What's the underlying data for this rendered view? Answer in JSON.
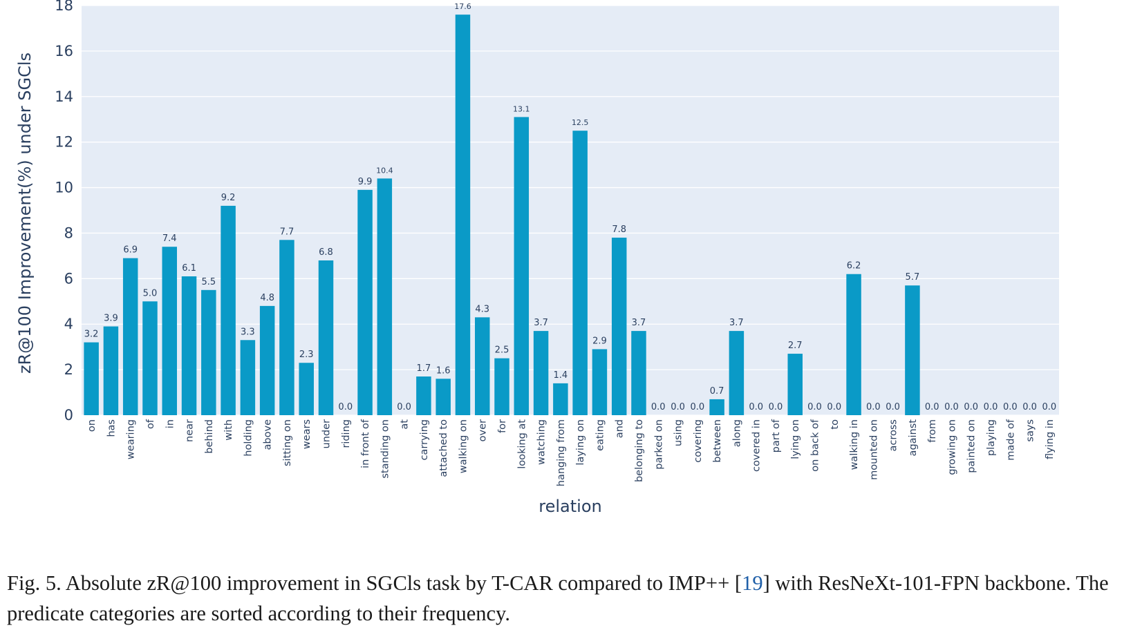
{
  "colors": {
    "bar": "#0a9ac7",
    "plot_bg": "#e5ecf6",
    "grid": "#ffffff",
    "text": "#2a3f5f",
    "ref_link": "#1f5fa8"
  },
  "chart_data": {
    "type": "bar",
    "xlabel": "relation",
    "ylabel": "zR@100 Improvement(%) under SGCls",
    "ylim": [
      0,
      18
    ],
    "yticks": [
      0,
      2,
      4,
      6,
      8,
      10,
      12,
      14,
      16,
      18
    ],
    "grid": true,
    "categories": [
      "on",
      "has",
      "wearing",
      "of",
      "in",
      "near",
      "behind",
      "with",
      "holding",
      "above",
      "sitting on",
      "wears",
      "under",
      "riding",
      "in front of",
      "standing on",
      "at",
      "carrying",
      "attached to",
      "walking on",
      "over",
      "for",
      "looking at",
      "watching",
      "hanging from",
      "laying on",
      "eating",
      "and",
      "belonging to",
      "parked on",
      "using",
      "covering",
      "between",
      "along",
      "covered in",
      "part of",
      "lying on",
      "on back of",
      "to",
      "walking in",
      "mounted on",
      "across",
      "against",
      "from",
      "growing on",
      "painted on",
      "playing",
      "made of",
      "says",
      "flying in"
    ],
    "values": [
      3.2,
      3.9,
      6.9,
      5.0,
      7.4,
      6.1,
      5.5,
      9.2,
      3.3,
      4.8,
      7.7,
      2.3,
      6.8,
      0.0,
      9.9,
      10.4,
      0.0,
      1.7,
      1.6,
      17.6,
      4.3,
      2.5,
      13.1,
      3.7,
      1.4,
      12.5,
      2.9,
      7.8,
      3.7,
      0.0,
      0.0,
      0.0,
      0.7,
      3.7,
      0.0,
      0.0,
      2.7,
      0.0,
      0.0,
      6.2,
      0.0,
      0.0,
      5.7,
      0.0,
      0.0,
      0.0,
      0.0,
      0.0,
      0.0,
      0.0
    ],
    "data_labels": [
      "3.2",
      "3.9",
      "6.9",
      "5.0",
      "7.4",
      "6.1",
      "5.5",
      "9.2",
      "3.3",
      "4.8",
      "7.7",
      "2.3",
      "6.8",
      "0.0",
      "9.9",
      "10.4",
      "0.0",
      "1.7",
      "1.6",
      "17.6",
      "4.3",
      "2.5",
      "13.1",
      "3.7",
      "1.4",
      "12.5",
      "2.9",
      "7.8",
      "3.7",
      "0.0",
      "0.0",
      "0.0",
      "0.7",
      "3.7",
      "0.0",
      "0.0",
      "2.7",
      "0.0",
      "0.0",
      "6.2",
      "0.0",
      "0.0",
      "5.7",
      "0.0",
      "0.0",
      "0.0",
      "0.0",
      "0.0",
      "0.0",
      "0.0"
    ]
  },
  "caption": {
    "prefix": "Fig. 5.  Absolute zR@100 improvement in SGCls task by T-CAR compared to IMP++ [",
    "ref": "19",
    "suffix": "] with ResNeXt-101-FPN backbone. The predicate categories are sorted according to their frequency."
  }
}
